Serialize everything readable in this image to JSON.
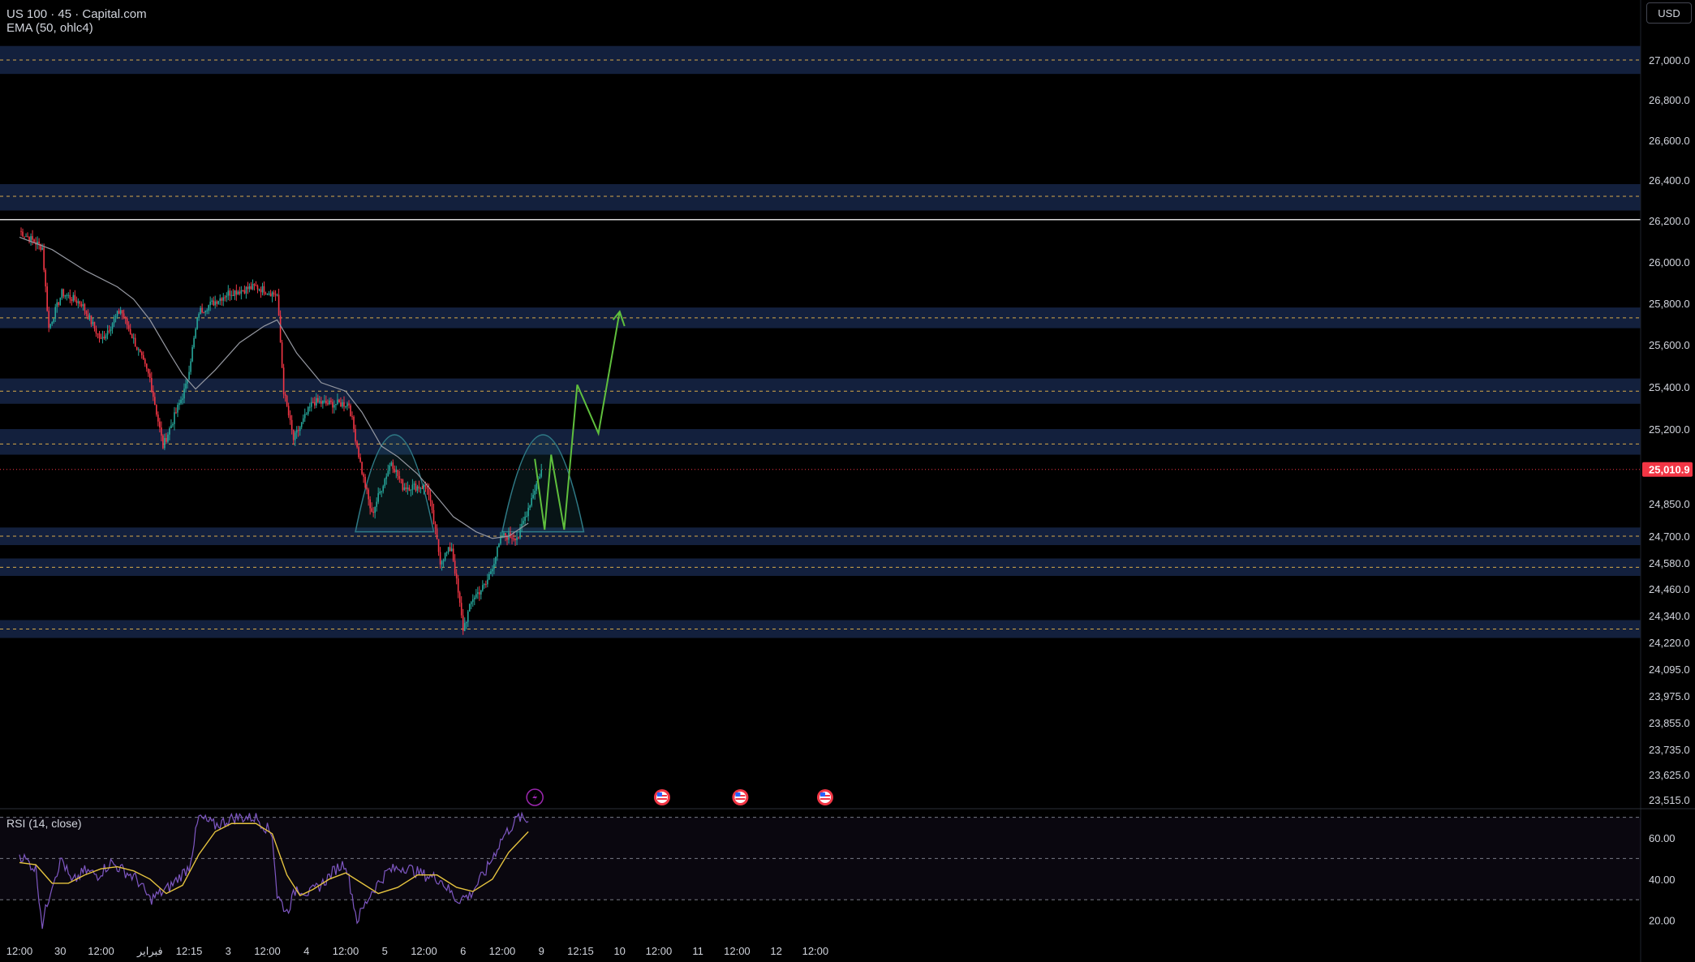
{
  "header": {
    "symbol_line": "US 100 · 45 · Capital.com",
    "indicator_line": "EMA (50, ohlc4)",
    "currency_button": "USD"
  },
  "rsi_panel": {
    "label": "RSI (14, close)"
  },
  "colors": {
    "up": "#26a69a",
    "down": "#f23645",
    "ema": "#9598a1",
    "zone": "#13203d",
    "zone_line": "#d7a94a",
    "projection": "#5fbf3d",
    "rsi": "#7e57c2",
    "rsi_ma": "#e5c33f",
    "price_tag": "#f23645"
  },
  "chart_data": [
    {
      "type": "candlestick",
      "title": "US 100 · 45 · Capital.com",
      "ylim": [
        23470,
        27120
      ],
      "y_ticks": [
        "27,000.0",
        "26,800.0",
        "26,600.0",
        "26,400.0",
        "26,200.0",
        "26,000.0",
        "25,800.0",
        "25,600.0",
        "25,400.0",
        "25,200.0",
        "24,850.0",
        "24,700.0",
        "24,580.0",
        "24,460.0",
        "24,340.0",
        "24,220.0",
        "24,095.0",
        "23,975.0",
        "23,855.0",
        "23,735.0",
        "23,625.0",
        "23,515.0"
      ],
      "x_ticks": [
        "12:00",
        "30",
        "12:00",
        "فبراير",
        "12:15",
        "3",
        "12:00",
        "4",
        "12:00",
        "5",
        "12:00",
        "6",
        "12:00",
        "9",
        "12:15",
        "10",
        "12:00",
        "11",
        "12:00",
        "12",
        "12:00"
      ],
      "x_tick_index": [
        0,
        25,
        50,
        80,
        104,
        128,
        152,
        176,
        200,
        224,
        248,
        272,
        296,
        320,
        344,
        368,
        392,
        416,
        440,
        464,
        488
      ],
      "last_price": "25,010.9",
      "last_price_value": 25010.9,
      "ema": {
        "name": "EMA (50, ohlc4)",
        "points": [
          [
            0,
            26120
          ],
          [
            20,
            26060
          ],
          [
            40,
            25960
          ],
          [
            60,
            25880
          ],
          [
            70,
            25820
          ],
          [
            80,
            25720
          ],
          [
            92,
            25560
          ],
          [
            100,
            25460
          ],
          [
            108,
            25390
          ],
          [
            120,
            25480
          ],
          [
            135,
            25610
          ],
          [
            150,
            25690
          ],
          [
            158,
            25720
          ],
          [
            170,
            25560
          ],
          [
            185,
            25420
          ],
          [
            200,
            25380
          ],
          [
            210,
            25280
          ],
          [
            222,
            25120
          ],
          [
            232,
            25070
          ],
          [
            244,
            24990
          ],
          [
            254,
            24900
          ],
          [
            266,
            24790
          ],
          [
            280,
            24720
          ],
          [
            290,
            24690
          ],
          [
            300,
            24700
          ],
          [
            312,
            24760
          ]
        ]
      },
      "candles_anchor": [
        [
          0,
          26150
        ],
        [
          14,
          26070
        ],
        [
          18,
          25680
        ],
        [
          26,
          25850
        ],
        [
          38,
          25800
        ],
        [
          50,
          25620
        ],
        [
          62,
          25770
        ],
        [
          80,
          25440
        ],
        [
          88,
          25120
        ],
        [
          102,
          25400
        ],
        [
          110,
          25760
        ],
        [
          128,
          25850
        ],
        [
          145,
          25880
        ],
        [
          158,
          25840
        ],
        [
          162,
          25380
        ],
        [
          168,
          25150
        ],
        [
          180,
          25330
        ],
        [
          190,
          25320
        ],
        [
          202,
          25320
        ],
        [
          210,
          25000
        ],
        [
          216,
          24800
        ],
        [
          228,
          25050
        ],
        [
          235,
          24930
        ],
        [
          250,
          24930
        ],
        [
          258,
          24590
        ],
        [
          265,
          24650
        ],
        [
          272,
          24280
        ],
        [
          278,
          24420
        ],
        [
          286,
          24480
        ],
        [
          296,
          24700
        ],
        [
          306,
          24700
        ],
        [
          320,
          25010
        ]
      ],
      "zones": [
        {
          "value": 27000,
          "band": [
            26930,
            27070
          ]
        },
        {
          "value": 26320,
          "band": [
            26250,
            26380
          ]
        },
        {
          "value": 25730,
          "band": [
            25680,
            25780
          ]
        },
        {
          "value": 25380,
          "band": [
            25320,
            25440
          ]
        },
        {
          "value": 25130,
          "band": [
            25080,
            25200
          ]
        },
        {
          "value": 24700,
          "band": [
            24660,
            24740
          ]
        },
        {
          "value": 24560,
          "band": [
            24520,
            24600
          ]
        },
        {
          "value": 24280,
          "band": [
            24240,
            24320
          ]
        }
      ],
      "resistance_line": 26205,
      "arches": [
        {
          "x_start": 206,
          "x_end": 254,
          "base": 24720,
          "peak": 25185
        },
        {
          "x_start": 296,
          "x_end": 346,
          "base": 24720,
          "peak": 25185
        }
      ],
      "projection_path": [
        [
          316,
          25060
        ],
        [
          322,
          24730
        ],
        [
          326,
          25080
        ],
        [
          334,
          24730
        ],
        [
          342,
          25410
        ],
        [
          355,
          25180
        ],
        [
          368,
          25760
        ],
        [
          371,
          25690
        ]
      ],
      "event_markers": [
        {
          "index": 316,
          "icon": "lightning-icon"
        },
        {
          "index": 394,
          "icon": "us-flag-icon"
        },
        {
          "index": 442,
          "icon": "us-flag-icon"
        },
        {
          "index": 494,
          "icon": "us-flag-icon"
        }
      ]
    },
    {
      "type": "line",
      "title": "RSI (14, close)",
      "ylim": [
        10,
        73
      ],
      "y_ticks": [
        60,
        40,
        20
      ],
      "bands": [
        70,
        50,
        30
      ],
      "rsi_points": [
        [
          0,
          52
        ],
        [
          10,
          45
        ],
        [
          14,
          18
        ],
        [
          20,
          38
        ],
        [
          26,
          50
        ],
        [
          32,
          38
        ],
        [
          40,
          44
        ],
        [
          48,
          42
        ],
        [
          56,
          48
        ],
        [
          64,
          44
        ],
        [
          72,
          40
        ],
        [
          80,
          30
        ],
        [
          92,
          36
        ],
        [
          104,
          46
        ],
        [
          110,
          70
        ],
        [
          120,
          66
        ],
        [
          132,
          70
        ],
        [
          145,
          70
        ],
        [
          155,
          62
        ],
        [
          158,
          32
        ],
        [
          164,
          24
        ],
        [
          170,
          36
        ],
        [
          178,
          33
        ],
        [
          186,
          38
        ],
        [
          194,
          45
        ],
        [
          200,
          48
        ],
        [
          207,
          20
        ],
        [
          216,
          34
        ],
        [
          226,
          44
        ],
        [
          236,
          46
        ],
        [
          248,
          42
        ],
        [
          258,
          40
        ],
        [
          268,
          30
        ],
        [
          276,
          32
        ],
        [
          286,
          44
        ],
        [
          296,
          60
        ],
        [
          306,
          70
        ],
        [
          312,
          68
        ]
      ],
      "ma_points": [
        [
          0,
          48
        ],
        [
          10,
          47
        ],
        [
          20,
          38
        ],
        [
          30,
          38
        ],
        [
          40,
          42
        ],
        [
          50,
          45
        ],
        [
          60,
          46
        ],
        [
          70,
          44
        ],
        [
          80,
          40
        ],
        [
          90,
          33
        ],
        [
          100,
          37
        ],
        [
          110,
          52
        ],
        [
          120,
          63
        ],
        [
          130,
          67
        ],
        [
          145,
          67
        ],
        [
          155,
          62
        ],
        [
          164,
          42
        ],
        [
          172,
          32
        ],
        [
          180,
          35
        ],
        [
          190,
          40
        ],
        [
          200,
          43
        ],
        [
          210,
          38
        ],
        [
          220,
          33
        ],
        [
          232,
          36
        ],
        [
          244,
          42
        ],
        [
          256,
          42
        ],
        [
          268,
          36
        ],
        [
          278,
          34
        ],
        [
          290,
          40
        ],
        [
          300,
          53
        ],
        [
          312,
          63
        ]
      ]
    }
  ]
}
